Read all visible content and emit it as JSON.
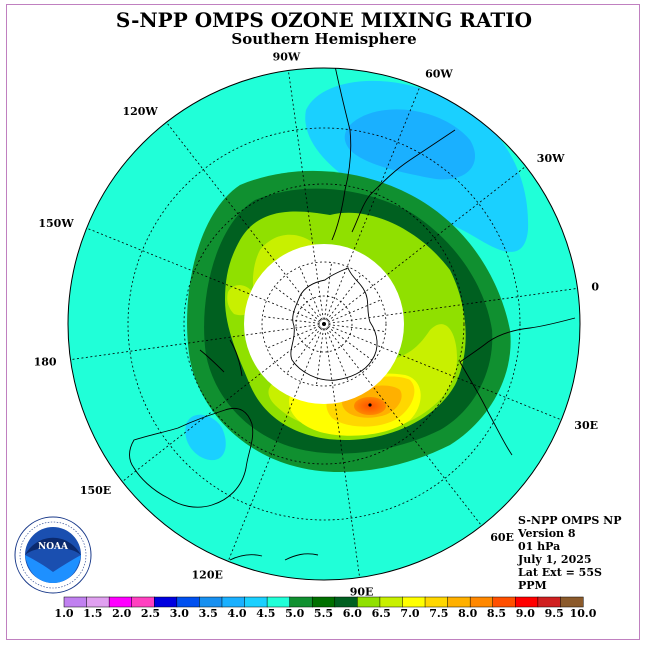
{
  "header": {
    "title": "S-NPP OMPS OZONE MIXING RATIO",
    "subtitle": "Southern Hemisphere"
  },
  "map": {
    "projection": "south-polar-stereographic",
    "longitude_labels": [
      {
        "text": "0",
        "lon": 0
      },
      {
        "text": "30E",
        "lon": 30
      },
      {
        "text": "60E",
        "lon": 60
      },
      {
        "text": "90E",
        "lon": 90
      },
      {
        "text": "120E",
        "lon": 120
      },
      {
        "text": "150E",
        "lon": 150
      },
      {
        "text": "180",
        "lon": 180
      },
      {
        "text": "150W",
        "lon": -150
      },
      {
        "text": "120W",
        "lon": -120
      },
      {
        "text": "90W",
        "lon": -90
      },
      {
        "text": "60W",
        "lon": -60
      },
      {
        "text": "30W",
        "lon": -30
      }
    ],
    "no_data_cap": "white polar cap (no data)"
  },
  "info": {
    "line1": "S-NPP OMPS NP",
    "line2": "Version 8",
    "line3": "01 hPa",
    "line4": "July 1, 2025",
    "line5": "Lat Ext = 55S",
    "line6": "PPM"
  },
  "colorbar": {
    "colors": [
      "#c080f0",
      "#e0a0f0",
      "#ff00ff",
      "#ff40c0",
      "#0000e0",
      "#0050f0",
      "#1890f0",
      "#1ab0ff",
      "#1ad0ff",
      "#20ffd8",
      "#109030",
      "#007000",
      "#006020",
      "#90e000",
      "#c8f000",
      "#ffff00",
      "#ffd700",
      "#ffb000",
      "#ff8800",
      "#ff5000",
      "#ff0000",
      "#d02020",
      "#8b5a2b"
    ],
    "labels": [
      "1.0",
      "1.5",
      "2.0",
      "2.5",
      "3.0",
      "3.5",
      "4.0",
      "4.5",
      "5.0",
      "5.5",
      "6.0",
      "6.5",
      "7.0",
      "7.5",
      "8.0",
      "8.5",
      "9.0",
      "9.5",
      "10.0"
    ]
  },
  "logo": {
    "text": "NOAA",
    "ring_text": "NATIONAL OCEANIC AND ATMOSPHERIC ADMINISTRATION · U.S. DEPARTMENT OF COMMERCE"
  }
}
